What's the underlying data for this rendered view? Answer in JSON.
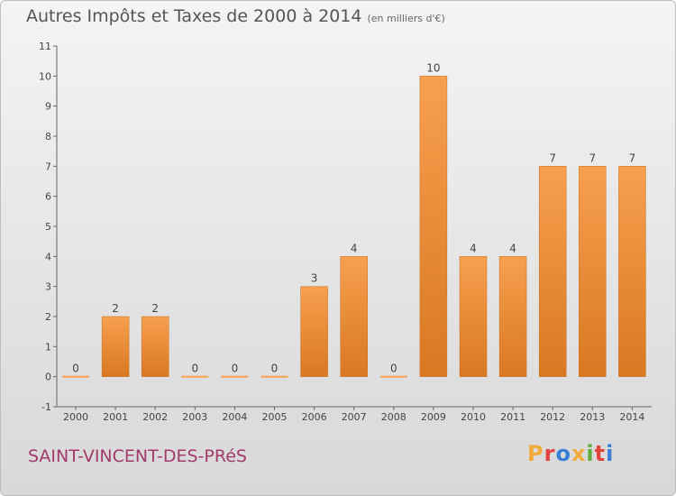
{
  "header": {
    "title": "Autres Impôts et Taxes de 2000 à 2014",
    "subtitle": "(en milliers d'€)"
  },
  "footer": {
    "commune": "SAINT-VINCENT-DES-PRéS",
    "logo_letters": [
      "P",
      "r",
      "o",
      "x",
      "i",
      "t",
      "i"
    ],
    "logo_colors": [
      "#f2a93b",
      "#e0443c",
      "#3a7fd5",
      "#f2a93b",
      "#5fae3c",
      "#e0443c",
      "#3a7fd5"
    ]
  },
  "colors": {
    "bar_top": "#f7a04f",
    "bar_bottom": "#d97822",
    "axis": "#666666"
  },
  "chart_data": {
    "type": "bar",
    "title": "Autres Impôts et Taxes de 2000 à 2014",
    "subtitle": "(en milliers d'€)",
    "categories": [
      "2000",
      "2001",
      "2002",
      "2003",
      "2004",
      "2005",
      "2006",
      "2007",
      "2008",
      "2009",
      "2010",
      "2011",
      "2012",
      "2013",
      "2014"
    ],
    "values": [
      0,
      2,
      2,
      0,
      0,
      0,
      3,
      4,
      0,
      10,
      4,
      4,
      7,
      7,
      7
    ],
    "data_labels": [
      "0",
      "2",
      "2",
      "0",
      "0",
      "0",
      "3",
      "4",
      "0",
      "10",
      "4",
      "4",
      "7",
      "7",
      "7"
    ],
    "ylim": [
      -1,
      11
    ],
    "yticks": [
      -1,
      0,
      1,
      2,
      3,
      4,
      5,
      6,
      7,
      8,
      9,
      10,
      11
    ],
    "xlabel": "",
    "ylabel": "",
    "grid": false
  }
}
